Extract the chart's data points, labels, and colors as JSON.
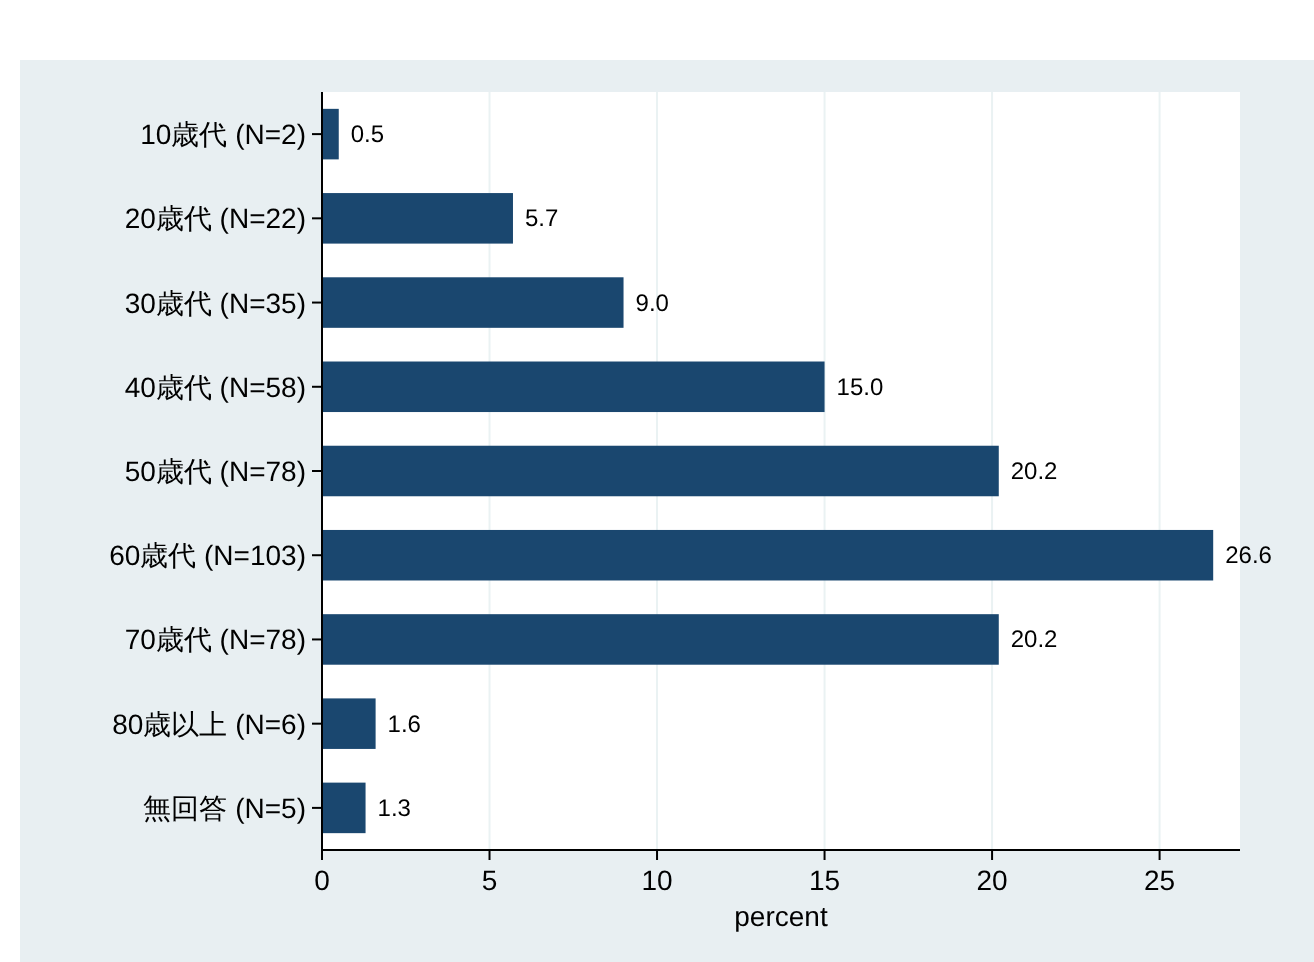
{
  "chart_data": {
    "type": "bar",
    "orientation": "horizontal",
    "xlabel": "percent",
    "categories": [
      "10歳代 (N=2)",
      "20歳代 (N=22)",
      "30歳代 (N=35)",
      "40歳代 (N=58)",
      "50歳代 (N=78)",
      "60歳代 (N=103)",
      "70歳代 (N=78)",
      "80歳以上 (N=6)",
      "無回答 (N=5)"
    ],
    "values": [
      0.5,
      5.7,
      9.0,
      15.0,
      20.2,
      26.6,
      20.2,
      1.6,
      1.3
    ],
    "value_labels": [
      "0.5",
      "5.7",
      "9.0",
      "15.0",
      "20.2",
      "26.6",
      "20.2",
      "1.6",
      "1.3"
    ],
    "color": "#1a476f",
    "xlim": [
      0,
      27.4
    ],
    "xticks": [
      0,
      5,
      10,
      15,
      20,
      25
    ],
    "grid": "x"
  }
}
